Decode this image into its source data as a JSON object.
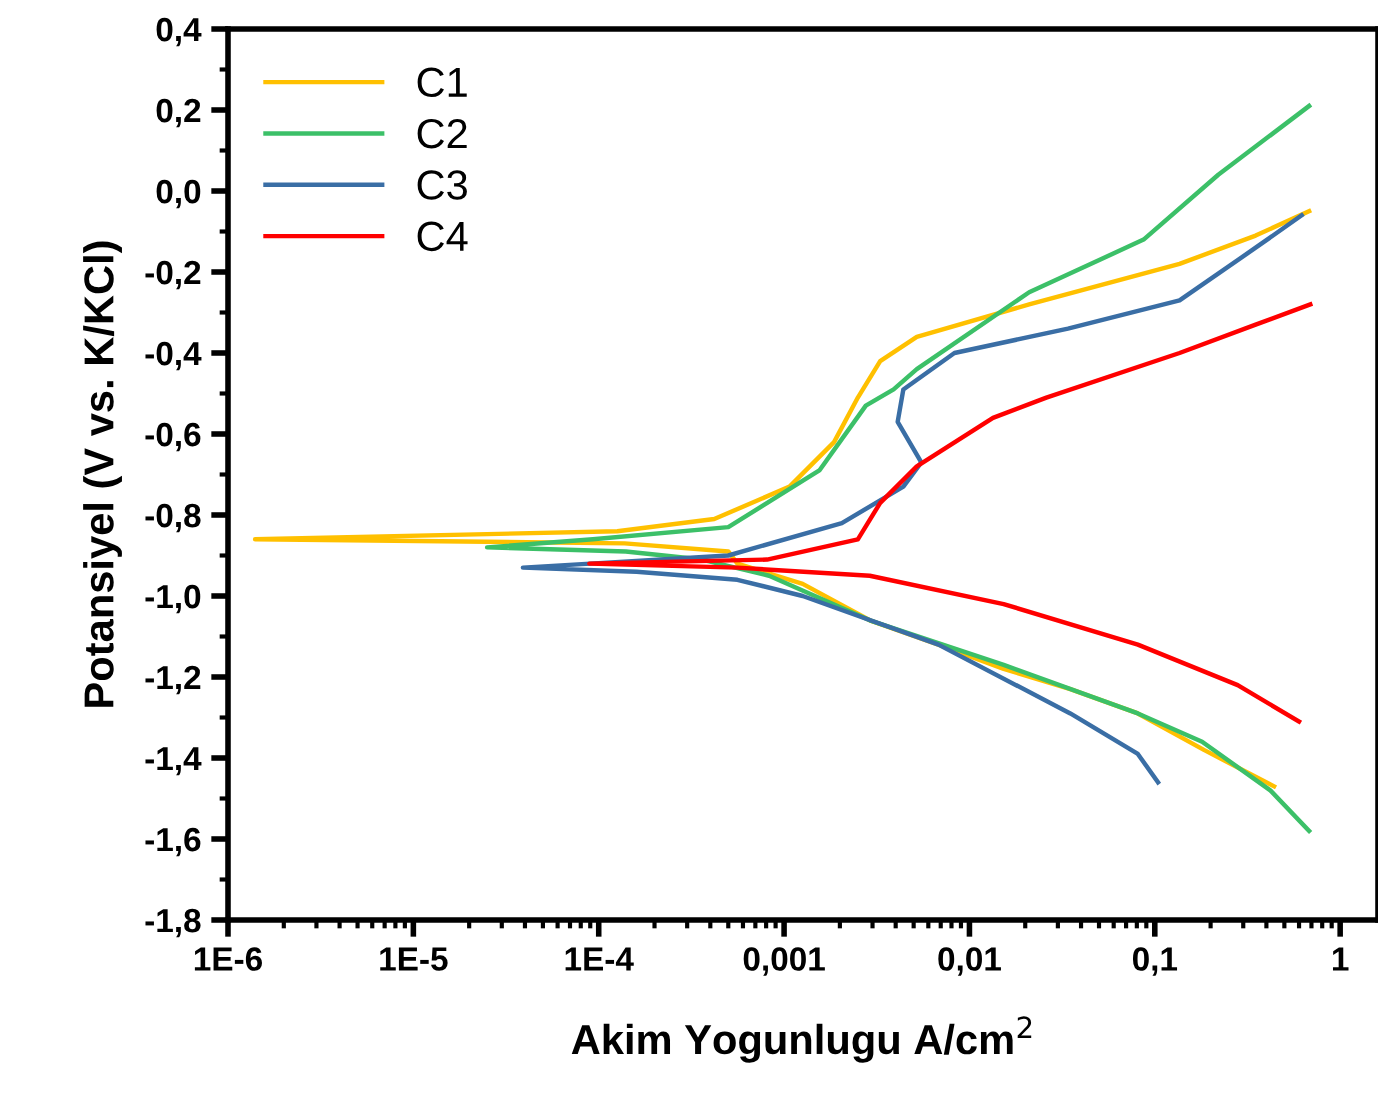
{
  "chart_data": {
    "type": "line",
    "xlabel": "Akim Yogunlugu A/cm$^{2}$",
    "ylabel": "Potansiyel (V vs. K/KCl)",
    "log": "x",
    "grid": false,
    "legend": "top left",
    "xlim": [
      1e-06,
      1.6
    ],
    "xticks": [
      {
        "value": 1e-06,
        "label": "1E-6"
      },
      {
        "value": 1e-05,
        "label": "1E-5"
      },
      {
        "value": 0.0001,
        "label": "1E-4"
      },
      {
        "value": 0.001,
        "label": "0,001"
      },
      {
        "value": 0.01,
        "label": "0,01"
      },
      {
        "value": 0.1,
        "label": "0,1"
      },
      {
        "value": 1,
        "label": "1"
      }
    ],
    "ylim": [
      -1.8,
      0.4
    ],
    "yticks": [
      {
        "value": -1.8,
        "label": "-1,8"
      },
      {
        "value": -1.6,
        "label": "-1,6"
      },
      {
        "value": -1.4,
        "label": "-1,4"
      },
      {
        "value": -1.2,
        "label": "-1,2"
      },
      {
        "value": -1.0,
        "label": "-1,0"
      },
      {
        "value": -0.8,
        "label": "-0,8"
      },
      {
        "value": -0.6,
        "label": "-0,6"
      },
      {
        "value": -0.4,
        "label": "-0,4"
      },
      {
        "value": -0.2,
        "label": "-0,2"
      },
      {
        "value": 0.0,
        "label": "0,0"
      },
      {
        "value": 0.2,
        "label": "0,2"
      },
      {
        "value": 0.4,
        "label": "0,4"
      }
    ],
    "series": [
      {
        "name": "C1",
        "color": "#ffc000",
        "x": [
          0.44,
          0.184,
          0.081,
          0.035,
          0.0153,
          0.0068,
          0.0029,
          0.00126,
          0.00056,
          0.0005,
          0.000138,
          1.4e-06,
          0.000126,
          0.00042,
          0.00107,
          0.00186,
          0.0025,
          0.0033,
          0.0052,
          0.021,
          0.136,
          0.35,
          0.68
        ],
        "values": [
          -1.47,
          -1.38,
          -1.29,
          -1.23,
          -1.18,
          -1.12,
          -1.06,
          -0.97,
          -0.92,
          -0.89,
          -0.87,
          -0.86,
          -0.84,
          -0.81,
          -0.73,
          -0.62,
          -0.51,
          -0.42,
          -0.36,
          -0.28,
          -0.18,
          -0.11,
          -0.05
        ]
      },
      {
        "name": "C2",
        "color": "#3cc068",
        "x": [
          0.68,
          0.42,
          0.18,
          0.081,
          0.0153,
          0.0029,
          0.00083,
          0.00036,
          0.00014,
          2.5e-05,
          9.3e-05,
          0.0005,
          0.00155,
          0.00276,
          0.0039,
          0.0052,
          0.021,
          0.087,
          0.22,
          0.68
        ],
        "values": [
          -1.58,
          -1.48,
          -1.36,
          -1.29,
          -1.17,
          -1.06,
          -0.95,
          -0.91,
          -0.89,
          -0.88,
          -0.86,
          -0.83,
          -0.69,
          -0.53,
          -0.49,
          -0.44,
          -0.25,
          -0.12,
          0.04,
          0.21
        ]
      },
      {
        "name": "C3",
        "color": "#3a6ea5",
        "x": [
          0.104,
          0.081,
          0.035,
          0.0068,
          0.00126,
          0.00056,
          0.00016,
          3.9e-05,
          9e-05,
          0.0005,
          0.00205,
          0.0044,
          0.0055,
          0.0041,
          0.0044,
          0.0083,
          0.034,
          0.136,
          0.35,
          0.62
        ],
        "values": [
          -1.46,
          -1.39,
          -1.29,
          -1.12,
          -1.0,
          -0.96,
          -0.94,
          -0.93,
          -0.92,
          -0.9,
          -0.82,
          -0.73,
          -0.67,
          -0.57,
          -0.49,
          -0.4,
          -0.34,
          -0.27,
          -0.14,
          -0.06
        ]
      },
      {
        "name": "C4",
        "color": "#ff0000",
        "x": [
          0.6,
          0.28,
          0.081,
          0.0153,
          0.0029,
          0.00056,
          8.9e-05,
          0.00081,
          0.0025,
          0.0033,
          0.0052,
          0.0134,
          0.026,
          0.136,
          0.35,
          0.69
        ],
        "values": [
          -1.31,
          -1.22,
          -1.12,
          -1.02,
          -0.95,
          -0.93,
          -0.92,
          -0.91,
          -0.86,
          -0.77,
          -0.68,
          -0.56,
          -0.51,
          -0.4,
          -0.33,
          -0.28
        ]
      }
    ]
  }
}
